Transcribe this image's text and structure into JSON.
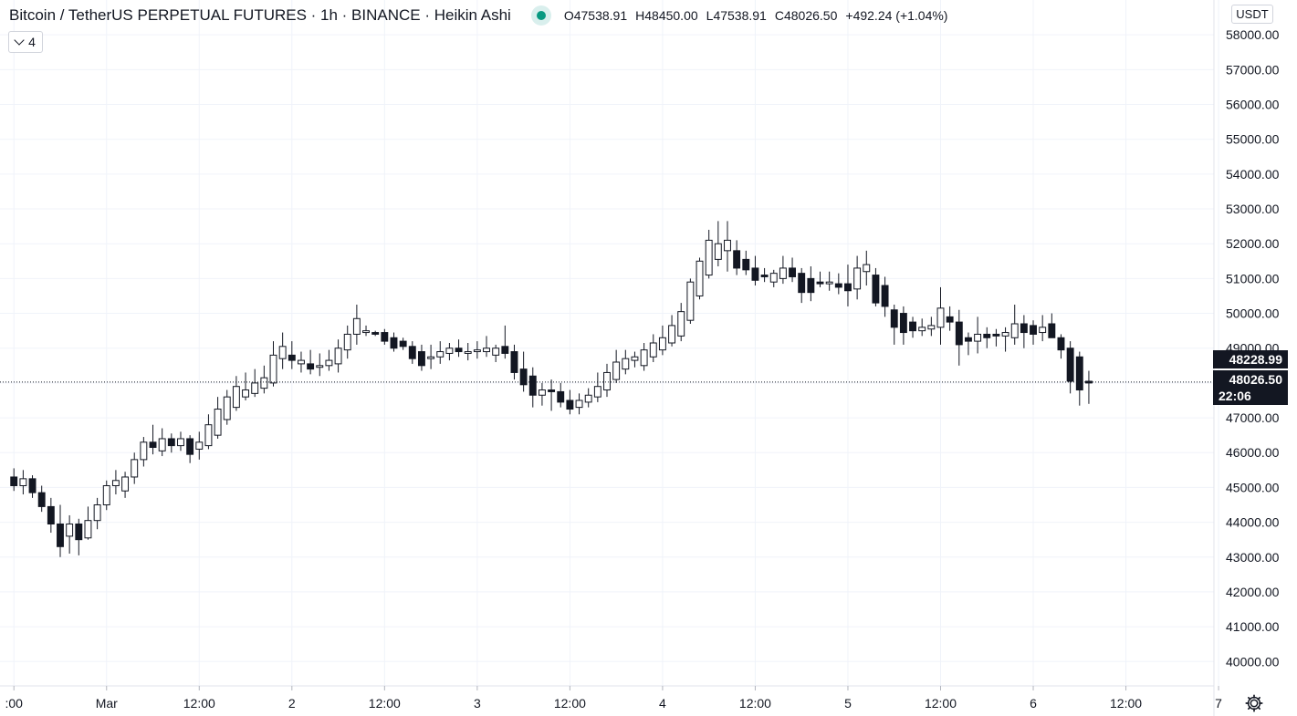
{
  "legend": {
    "title": "Bitcoin / TetherUS PERPETUAL FUTURES · 1h · BINANCE · Heikin Ashi",
    "o_key": "O",
    "o_val": "47538.91",
    "h_key": "H",
    "h_val": "48450.00",
    "l_key": "L",
    "l_val": "47538.91",
    "c_key": "C",
    "c_val": "48026.50",
    "change": "+492.24 (+1.04%)",
    "status_color": "#089981"
  },
  "collapse_button": {
    "count": "4"
  },
  "currency": "USDT",
  "price_tags": {
    "top_price": "48228.99",
    "last_price": "48026.50",
    "countdown": "22:06"
  },
  "settings_icon": "gear-icon",
  "chart_data": {
    "type": "candlestick",
    "style": "Heikin Ashi",
    "symbol": "Bitcoin / TetherUS PERPETUAL FUTURES",
    "interval": "1h",
    "exchange": "BINANCE",
    "y_tick_labels": [
      "40000.00",
      "41000.00",
      "42000.00",
      "43000.00",
      "44000.00",
      "45000.00",
      "46000.00",
      "47000.00",
      "48000.00",
      "49000.00",
      "50000.00",
      "51000.00",
      "52000.00",
      "53000.00",
      "54000.00",
      "55000.00",
      "56000.00",
      "57000.00",
      "58000.00"
    ],
    "ylim": [
      39300,
      59000
    ],
    "x_tick_labels": [
      ":00",
      "Mar",
      "12:00",
      "2",
      "12:00",
      "3",
      "12:00",
      "4",
      "12:00",
      "5",
      "12:00",
      "6",
      "12:00",
      "7"
    ],
    "hours_visible": [
      -1.5,
      129.5
    ],
    "last_price_line": 48026.5,
    "grid": true,
    "candles": [
      {
        "o": 45300,
        "h": 45550,
        "l": 44900,
        "c": 45050
      },
      {
        "o": 45050,
        "h": 45500,
        "l": 44800,
        "c": 45250
      },
      {
        "o": 45250,
        "h": 45350,
        "l": 44700,
        "c": 44850
      },
      {
        "o": 44850,
        "h": 45050,
        "l": 44300,
        "c": 44450
      },
      {
        "o": 44450,
        "h": 44700,
        "l": 43700,
        "c": 43950
      },
      {
        "o": 43950,
        "h": 44500,
        "l": 43000,
        "c": 43300
      },
      {
        "o": 43600,
        "h": 44200,
        "l": 43100,
        "c": 43950
      },
      {
        "o": 43950,
        "h": 44100,
        "l": 43050,
        "c": 43500
      },
      {
        "o": 43550,
        "h": 44450,
        "l": 43500,
        "c": 44050
      },
      {
        "o": 44050,
        "h": 44700,
        "l": 43800,
        "c": 44500
      },
      {
        "o": 44500,
        "h": 45200,
        "l": 44350,
        "c": 45050
      },
      {
        "o": 45050,
        "h": 45500,
        "l": 44800,
        "c": 45200
      },
      {
        "o": 44900,
        "h": 45450,
        "l": 44700,
        "c": 45300
      },
      {
        "o": 45300,
        "h": 46000,
        "l": 45100,
        "c": 45800
      },
      {
        "o": 45800,
        "h": 46450,
        "l": 45600,
        "c": 46300
      },
      {
        "o": 46300,
        "h": 46800,
        "l": 45950,
        "c": 46150
      },
      {
        "o": 46050,
        "h": 46700,
        "l": 45900,
        "c": 46400
      },
      {
        "o": 46400,
        "h": 46550,
        "l": 46000,
        "c": 46200
      },
      {
        "o": 46200,
        "h": 46600,
        "l": 46050,
        "c": 46400
      },
      {
        "o": 46400,
        "h": 46500,
        "l": 45700,
        "c": 45950
      },
      {
        "o": 46100,
        "h": 46600,
        "l": 45800,
        "c": 46300
      },
      {
        "o": 46200,
        "h": 47100,
        "l": 46100,
        "c": 46800
      },
      {
        "o": 46500,
        "h": 47600,
        "l": 46400,
        "c": 47250
      },
      {
        "o": 46950,
        "h": 47800,
        "l": 46800,
        "c": 47600
      },
      {
        "o": 47300,
        "h": 48200,
        "l": 47200,
        "c": 47900
      },
      {
        "o": 47600,
        "h": 48300,
        "l": 47500,
        "c": 47800
      },
      {
        "o": 47700,
        "h": 48400,
        "l": 47600,
        "c": 48000
      },
      {
        "o": 47850,
        "h": 48500,
        "l": 47700,
        "c": 48150
      },
      {
        "o": 48000,
        "h": 49200,
        "l": 47900,
        "c": 48800
      },
      {
        "o": 48700,
        "h": 49450,
        "l": 48400,
        "c": 49050
      },
      {
        "o": 48800,
        "h": 49200,
        "l": 48400,
        "c": 48650
      },
      {
        "o": 48550,
        "h": 48900,
        "l": 48300,
        "c": 48650
      },
      {
        "o": 48550,
        "h": 48950,
        "l": 48250,
        "c": 48400
      },
      {
        "o": 48450,
        "h": 48850,
        "l": 48200,
        "c": 48500
      },
      {
        "o": 48500,
        "h": 48950,
        "l": 48350,
        "c": 48650
      },
      {
        "o": 48550,
        "h": 49250,
        "l": 48300,
        "c": 49000
      },
      {
        "o": 48950,
        "h": 49650,
        "l": 48700,
        "c": 49400
      },
      {
        "o": 49400,
        "h": 50250,
        "l": 49100,
        "c": 49850
      },
      {
        "o": 49450,
        "h": 49650,
        "l": 49350,
        "c": 49500
      },
      {
        "o": 49450,
        "h": 49500,
        "l": 49350,
        "c": 49400
      },
      {
        "o": 49450,
        "h": 49550,
        "l": 49100,
        "c": 49200
      },
      {
        "o": 49300,
        "h": 49450,
        "l": 48900,
        "c": 49000
      },
      {
        "o": 49200,
        "h": 49300,
        "l": 48950,
        "c": 49050
      },
      {
        "o": 49050,
        "h": 49200,
        "l": 48550,
        "c": 48700
      },
      {
        "o": 48900,
        "h": 49100,
        "l": 48350,
        "c": 48500
      },
      {
        "o": 48700,
        "h": 49100,
        "l": 48400,
        "c": 48750
      },
      {
        "o": 48750,
        "h": 49200,
        "l": 48550,
        "c": 48900
      },
      {
        "o": 48850,
        "h": 49150,
        "l": 48650,
        "c": 49000
      },
      {
        "o": 49000,
        "h": 49250,
        "l": 48750,
        "c": 48900
      },
      {
        "o": 48850,
        "h": 49150,
        "l": 48650,
        "c": 48900
      },
      {
        "o": 48900,
        "h": 49200,
        "l": 48700,
        "c": 48950
      },
      {
        "o": 48900,
        "h": 49350,
        "l": 48750,
        "c": 49000
      },
      {
        "o": 48800,
        "h": 49100,
        "l": 48600,
        "c": 49000
      },
      {
        "o": 49050,
        "h": 49650,
        "l": 48700,
        "c": 48850
      },
      {
        "o": 48900,
        "h": 49100,
        "l": 48100,
        "c": 48300
      },
      {
        "o": 48400,
        "h": 48900,
        "l": 47750,
        "c": 47950
      },
      {
        "o": 48200,
        "h": 48450,
        "l": 47300,
        "c": 47650
      },
      {
        "o": 47650,
        "h": 48000,
        "l": 47350,
        "c": 47800
      },
      {
        "o": 47800,
        "h": 48100,
        "l": 47200,
        "c": 47750
      },
      {
        "o": 47750,
        "h": 48000,
        "l": 47300,
        "c": 47450
      },
      {
        "o": 47500,
        "h": 47800,
        "l": 47100,
        "c": 47250
      },
      {
        "o": 47300,
        "h": 47700,
        "l": 47100,
        "c": 47500
      },
      {
        "o": 47450,
        "h": 47850,
        "l": 47300,
        "c": 47650
      },
      {
        "o": 47600,
        "h": 48300,
        "l": 47450,
        "c": 47900
      },
      {
        "o": 47800,
        "h": 48550,
        "l": 47600,
        "c": 48300
      },
      {
        "o": 48100,
        "h": 48950,
        "l": 48000,
        "c": 48600
      },
      {
        "o": 48400,
        "h": 48950,
        "l": 48250,
        "c": 48700
      },
      {
        "o": 48650,
        "h": 48900,
        "l": 48450,
        "c": 48750
      },
      {
        "o": 48500,
        "h": 49150,
        "l": 48350,
        "c": 48950
      },
      {
        "o": 48750,
        "h": 49400,
        "l": 48600,
        "c": 49150
      },
      {
        "o": 48950,
        "h": 49650,
        "l": 48800,
        "c": 49300
      },
      {
        "o": 49150,
        "h": 49950,
        "l": 49050,
        "c": 49650
      },
      {
        "o": 49350,
        "h": 50300,
        "l": 49200,
        "c": 50050
      },
      {
        "o": 49800,
        "h": 51000,
        "l": 49700,
        "c": 50900
      },
      {
        "o": 50500,
        "h": 51600,
        "l": 50400,
        "c": 51500
      },
      {
        "o": 51100,
        "h": 52400,
        "l": 51000,
        "c": 52100
      },
      {
        "o": 51550,
        "h": 52650,
        "l": 51350,
        "c": 52000
      },
      {
        "o": 51800,
        "h": 52650,
        "l": 51200,
        "c": 52100
      },
      {
        "o": 51800,
        "h": 52100,
        "l": 51100,
        "c": 51300
      },
      {
        "o": 51550,
        "h": 51800,
        "l": 51100,
        "c": 51250
      },
      {
        "o": 51300,
        "h": 51650,
        "l": 50800,
        "c": 50950
      },
      {
        "o": 51100,
        "h": 51300,
        "l": 50900,
        "c": 51050
      },
      {
        "o": 50900,
        "h": 51250,
        "l": 50750,
        "c": 51150
      },
      {
        "o": 51000,
        "h": 51650,
        "l": 50850,
        "c": 51300
      },
      {
        "o": 51300,
        "h": 51600,
        "l": 50900,
        "c": 51050
      },
      {
        "o": 51150,
        "h": 51300,
        "l": 50300,
        "c": 50600
      },
      {
        "o": 51000,
        "h": 51350,
        "l": 50350,
        "c": 50600
      },
      {
        "o": 50900,
        "h": 51200,
        "l": 50750,
        "c": 50850
      },
      {
        "o": 50850,
        "h": 51200,
        "l": 50650,
        "c": 50900
      },
      {
        "o": 50850,
        "h": 51150,
        "l": 50550,
        "c": 50750
      },
      {
        "o": 50850,
        "h": 51400,
        "l": 50200,
        "c": 50650
      },
      {
        "o": 50700,
        "h": 51650,
        "l": 50400,
        "c": 51300
      },
      {
        "o": 51200,
        "h": 51800,
        "l": 50800,
        "c": 51400
      },
      {
        "o": 51100,
        "h": 51300,
        "l": 50200,
        "c": 50300
      },
      {
        "o": 50800,
        "h": 51050,
        "l": 49900,
        "c": 50200
      },
      {
        "o": 50100,
        "h": 50250,
        "l": 49100,
        "c": 49600
      },
      {
        "o": 50000,
        "h": 50200,
        "l": 49100,
        "c": 49450
      },
      {
        "o": 49750,
        "h": 49900,
        "l": 49300,
        "c": 49500
      },
      {
        "o": 49500,
        "h": 49850,
        "l": 49350,
        "c": 49600
      },
      {
        "o": 49550,
        "h": 49900,
        "l": 49350,
        "c": 49650
      },
      {
        "o": 49600,
        "h": 50750,
        "l": 49100,
        "c": 50150
      },
      {
        "o": 49900,
        "h": 50200,
        "l": 49500,
        "c": 49750
      },
      {
        "o": 49750,
        "h": 50100,
        "l": 48500,
        "c": 49100
      },
      {
        "o": 49300,
        "h": 49450,
        "l": 48800,
        "c": 49200
      },
      {
        "o": 49200,
        "h": 49900,
        "l": 48850,
        "c": 49400
      },
      {
        "o": 49400,
        "h": 49600,
        "l": 49000,
        "c": 49300
      },
      {
        "o": 49400,
        "h": 49550,
        "l": 49050,
        "c": 49350
      },
      {
        "o": 49350,
        "h": 49600,
        "l": 48900,
        "c": 49450
      },
      {
        "o": 49300,
        "h": 50250,
        "l": 49100,
        "c": 49700
      },
      {
        "o": 49700,
        "h": 49950,
        "l": 49000,
        "c": 49450
      },
      {
        "o": 49650,
        "h": 49800,
        "l": 49100,
        "c": 49400
      },
      {
        "o": 49450,
        "h": 49950,
        "l": 49200,
        "c": 49600
      },
      {
        "o": 49700,
        "h": 50000,
        "l": 49300,
        "c": 49300
      },
      {
        "o": 49300,
        "h": 49400,
        "l": 48700,
        "c": 48950
      },
      {
        "o": 49000,
        "h": 49200,
        "l": 47700,
        "c": 48050
      },
      {
        "o": 48750,
        "h": 48900,
        "l": 47350,
        "c": 47800
      },
      {
        "o": 48050,
        "h": 48350,
        "l": 47400,
        "c": 48000
      }
    ]
  }
}
